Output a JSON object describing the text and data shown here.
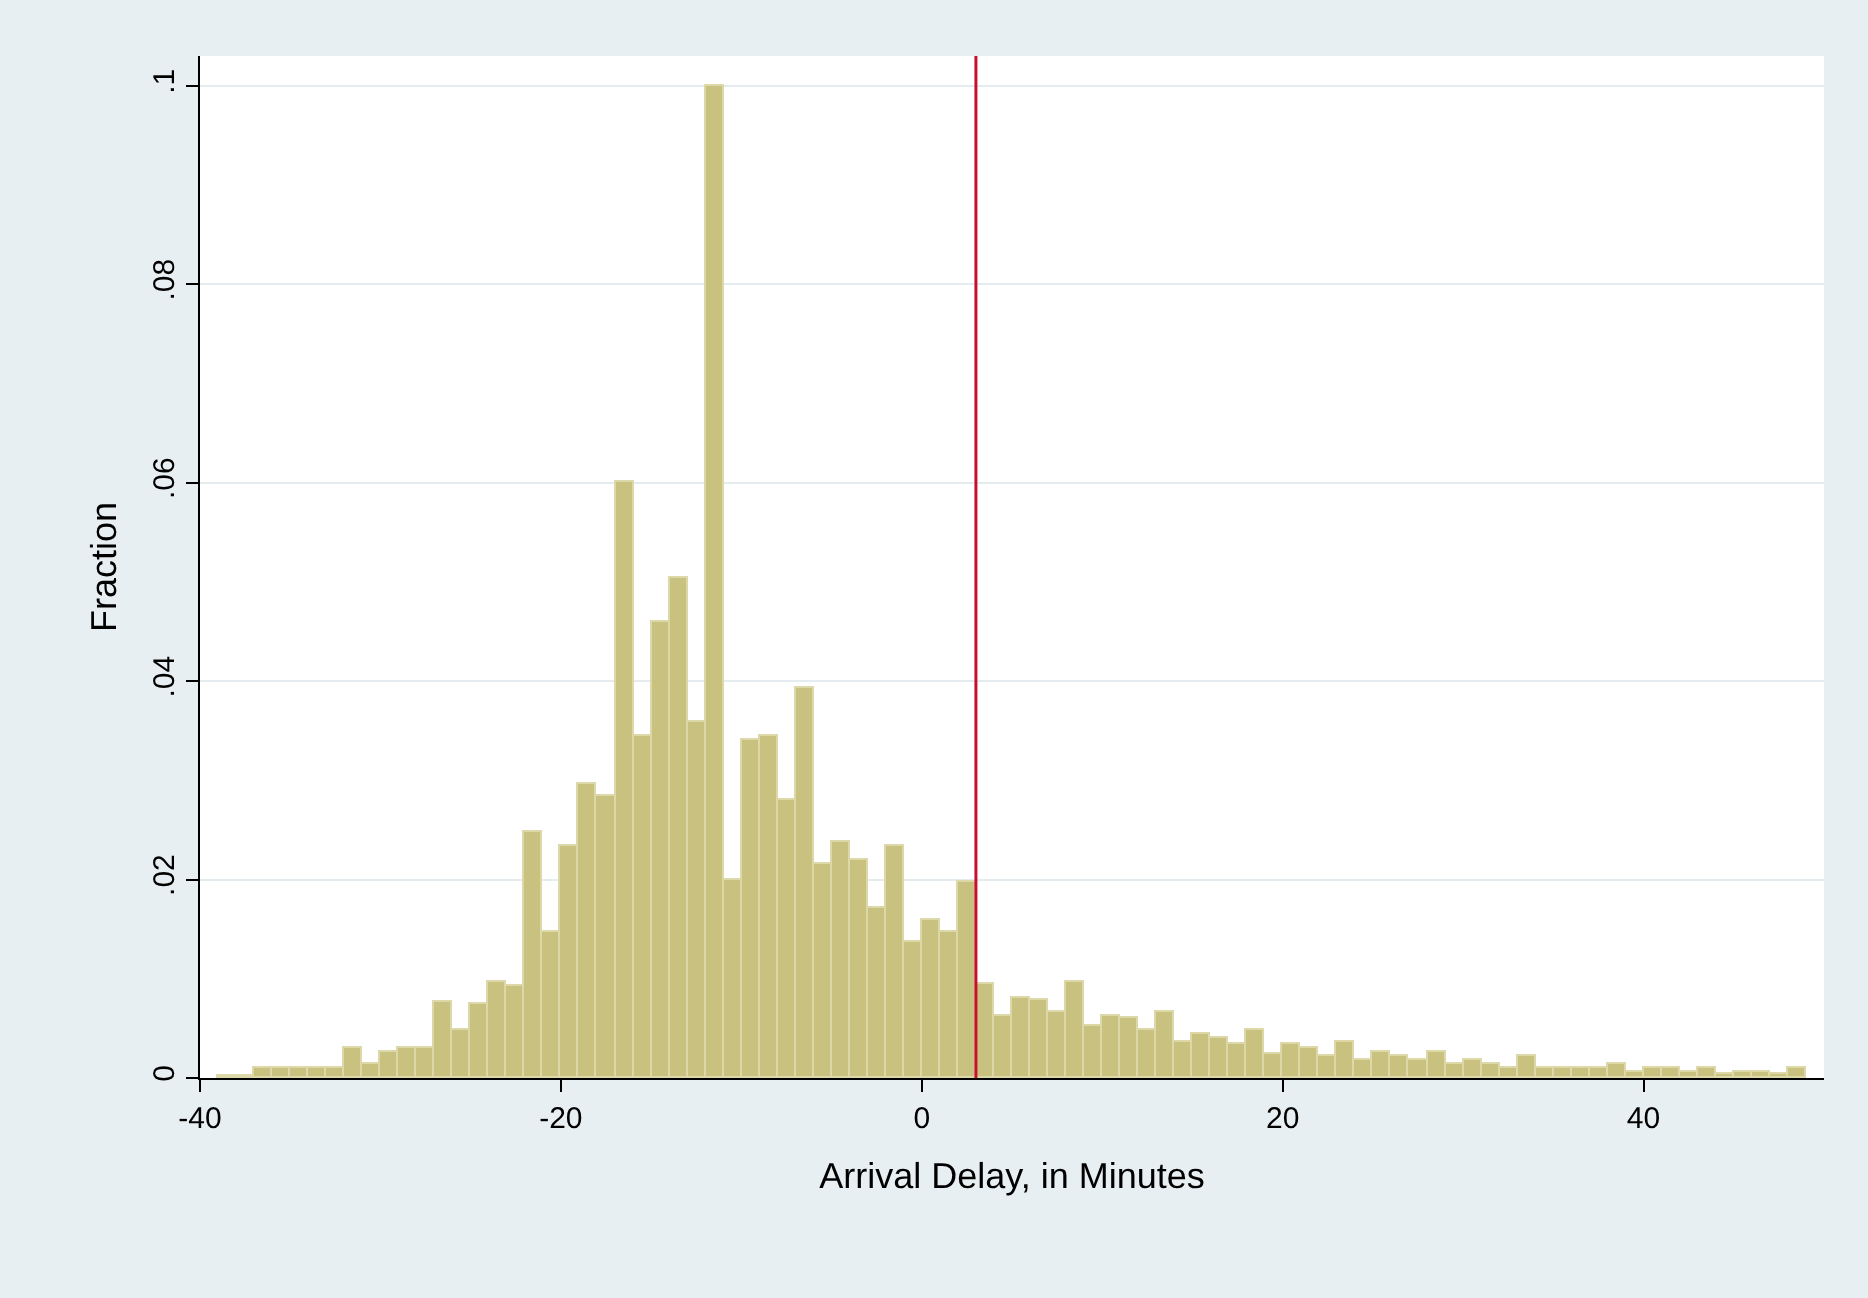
{
  "chart_data": {
    "type": "histogram",
    "xlabel": "Arrival Delay, in Minutes",
    "ylabel": "Fraction",
    "bins": [
      -39,
      -38,
      -37,
      -36,
      -35,
      -34,
      -33,
      -32,
      -31,
      -30,
      -29,
      -28,
      -27,
      -26,
      -25,
      -24,
      -23,
      -22,
      -21,
      -20,
      -19,
      -18,
      -17,
      -16,
      -15,
      -14,
      -13,
      -12,
      -11,
      -10,
      -9,
      -8,
      -7,
      -6,
      -5,
      -4,
      -3,
      -2,
      -1,
      0,
      1,
      2,
      3,
      4,
      5,
      6,
      7,
      8,
      9,
      10,
      11,
      12,
      13,
      14,
      15,
      16,
      17,
      18,
      19,
      20,
      21,
      22,
      23,
      24,
      25,
      26,
      27,
      28,
      29,
      30,
      31,
      32,
      33,
      34,
      35,
      36,
      37,
      38,
      39,
      40,
      41,
      42,
      43,
      44,
      45,
      46,
      47,
      48,
      49
    ],
    "values": [
      0.0003,
      0.0003,
      0.001,
      0.001,
      0.001,
      0.001,
      0.001,
      0.003,
      0.0014,
      0.0026,
      0.003,
      0.003,
      0.0077,
      0.0048,
      0.0074,
      0.0096,
      0.0092,
      0.0247,
      0.0148,
      0.0234,
      0.0296,
      0.0285,
      0.06,
      0.0344,
      0.046,
      0.0504,
      0.0359,
      0.1,
      0.02,
      0.0341,
      0.0344,
      0.0281,
      0.0393,
      0.0215,
      0.0237,
      0.0219,
      0.0171,
      0.0234,
      0.0137,
      0.0159,
      0.0148,
      0.0197,
      0.0094,
      0.0063,
      0.0081,
      0.0078,
      0.0066,
      0.0097,
      0.0052,
      0.0063,
      0.006,
      0.0049,
      0.0067,
      0.0037,
      0.0045,
      0.0041,
      0.0034,
      0.0049,
      0.0025,
      0.0034,
      0.003,
      0.0022,
      0.0037,
      0.0018,
      0.0026,
      0.0022,
      0.0018,
      0.0026,
      0.0014,
      0.0018,
      0.0015,
      0.001,
      0.0022,
      0.001,
      0.001,
      0.001,
      0.001,
      0.0015,
      0.0007,
      0.0011,
      0.0011,
      0.0007,
      0.0011,
      0.0004,
      0.0007,
      0.0007,
      0.0004,
      0.0011
    ],
    "color": "#c9c17f",
    "xlim": [
      -40,
      50
    ],
    "xticks": [
      -40,
      -20,
      0,
      20,
      40
    ],
    "ylim": [
      0,
      0.103
    ],
    "yticks": [
      {
        "value": 0,
        "label": "0"
      },
      {
        "value": 0.02,
        "label": ".02"
      },
      {
        "value": 0.04,
        "label": ".04"
      },
      {
        "value": 0.06,
        "label": ".06"
      },
      {
        "value": 0.08,
        "label": ".08"
      },
      {
        "value": 0.1,
        "label": ".1"
      }
    ],
    "grid": "y",
    "ref_lines": [
      {
        "axis": "x",
        "value": 3,
        "color": "#c8102e"
      }
    ]
  }
}
